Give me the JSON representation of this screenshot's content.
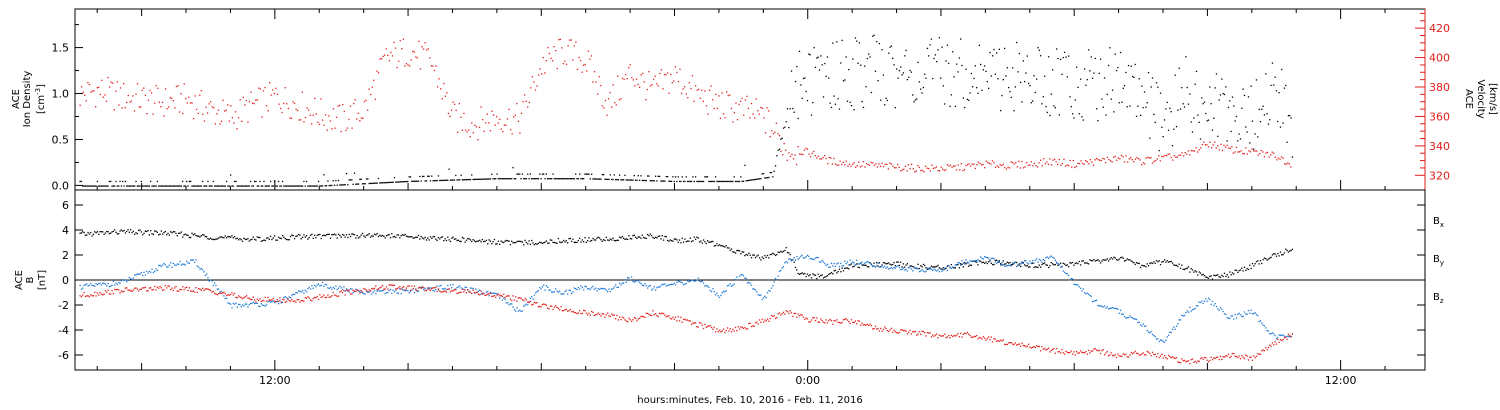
{
  "chart_data": [
    {
      "type": "scatter",
      "title": "",
      "xlabel": "hours:minutes, Feb. 10, 2016 - Feb. 11, 2016",
      "x_range_hours": [
        -16.5,
        13.9
      ],
      "x_tick_labels": [
        "12:00",
        "0:00",
        "12:00"
      ],
      "x_tick_values_hours": [
        -12,
        0,
        12
      ],
      "ylabel_left": [
        "ACE",
        "Ion Density",
        "[cm",
        "-3",
        "]"
      ],
      "ylim_left": [
        -0.05,
        1.92
      ],
      "yticks_left": [
        "0.0",
        "0.5",
        "1.0",
        "1.5"
      ],
      "ylabel_right": [
        "ACE",
        "Velocity",
        "[km/s]"
      ],
      "ylim_right": [
        310,
        433
      ],
      "yticks_right": [
        "320",
        "340",
        "360",
        "380",
        "400",
        "420"
      ],
      "series": [
        {
          "color": "#e0201b",
          "axis": "right",
          "x": [
            -16.4,
            -16.0,
            -15.5,
            -15.0,
            -14.5,
            -14.0,
            -13.5,
            -13.0,
            -12.5,
            -12.0,
            -11.5,
            -11.0,
            -10.5,
            -10.0,
            -9.5,
            -9.0,
            -8.5,
            -8.0,
            -7.5,
            -7.0,
            -6.5,
            -6.0,
            -5.5,
            -5.0,
            -4.5,
            -4.0,
            -3.5,
            -3.0,
            -2.5,
            -2.0,
            -1.5,
            -1.0,
            -0.5,
            0.0,
            0.5,
            1.0,
            1.5,
            2.0,
            2.5,
            3.0,
            3.5,
            4.0,
            4.5,
            5.0,
            5.5,
            6.0,
            6.5,
            7.0,
            7.5,
            8.0,
            8.5,
            9.0,
            9.5,
            10.0,
            10.5,
            10.9
          ],
          "values": [
            375,
            378,
            374,
            372,
            370,
            372,
            365,
            360,
            368,
            374,
            368,
            362,
            358,
            365,
            400,
            405,
            398,
            360,
            355,
            360,
            358,
            395,
            405,
            398,
            368,
            390,
            378,
            388,
            375,
            368,
            365,
            360,
            338,
            336,
            330,
            328,
            327,
            326,
            325,
            325,
            326,
            328,
            327,
            328,
            330,
            328,
            330,
            332,
            330,
            332,
            334,
            342,
            338,
            336,
            334,
            328
          ]
        }
      ],
      "density_series": {
        "color": "#000000",
        "axis": "left",
        "x": [
          -16.4,
          -15.0,
          -13.0,
          -11.0,
          -9.0,
          -7.0,
          -5.0,
          -3.0,
          -1.5,
          -0.8,
          -0.3,
          0.5,
          1.5,
          2.5,
          3.5,
          4.5,
          5.5,
          6.5,
          7.0,
          7.5,
          8.0,
          8.5,
          9.0,
          9.5,
          10.0,
          10.5,
          10.9
        ],
        "values": [
          0.0,
          0.0,
          0.0,
          0.0,
          0.05,
          0.08,
          0.08,
          0.05,
          0.05,
          0.1,
          1.1,
          1.2,
          1.25,
          1.2,
          1.25,
          1.2,
          1.15,
          1.1,
          1.2,
          1.0,
          0.6,
          1.05,
          0.8,
          0.9,
          0.7,
          1.1,
          0.6
        ]
      }
    },
    {
      "type": "scatter",
      "title": "",
      "ylabel_left": [
        "ACE",
        "B",
        "[nT]"
      ],
      "ylim": [
        -7.2,
        7.2
      ],
      "yticks": [
        "6",
        "4",
        "2",
        "0",
        "-2",
        "-4",
        "-6"
      ],
      "zero_line": true,
      "legend": [
        {
          "name": "B",
          "sub": "x",
          "color": "#000000"
        },
        {
          "name": "B",
          "sub": "y",
          "color": "#1e7ad6"
        },
        {
          "name": "B",
          "sub": "z",
          "color": "#e0201b"
        }
      ],
      "series": [
        {
          "name": "Bx",
          "color": "#000000",
          "x": [
            -16.4,
            -15.5,
            -14.5,
            -13.5,
            -12.5,
            -11.5,
            -10.5,
            -9.5,
            -8.5,
            -7.5,
            -6.5,
            -5.5,
            -4.5,
            -3.5,
            -3.0,
            -2.5,
            -2.0,
            -1.5,
            -1.0,
            -0.5,
            -0.2,
            0.3,
            1.0,
            2.0,
            3.0,
            4.0,
            5.0,
            6.0,
            7.0,
            7.5,
            8.0,
            8.5,
            9.0,
            9.5,
            10.0,
            10.5,
            10.9
          ],
          "values": [
            3.7,
            3.9,
            3.8,
            3.5,
            3.3,
            3.5,
            3.6,
            3.6,
            3.4,
            3.2,
            3.0,
            3.2,
            3.3,
            3.6,
            3.2,
            3.3,
            2.8,
            2.2,
            1.8,
            2.5,
            0.5,
            0.3,
            1.2,
            1.3,
            1.0,
            1.5,
            1.2,
            1.3,
            1.8,
            1.2,
            1.5,
            1.0,
            0.2,
            0.5,
            1.2,
            2.0,
            2.5
          ]
        },
        {
          "name": "By",
          "color": "#1e7ad6",
          "x": [
            -16.4,
            -15.5,
            -14.5,
            -13.8,
            -13.0,
            -12.0,
            -11.0,
            -10.0,
            -9.0,
            -8.0,
            -7.0,
            -6.5,
            -6.0,
            -5.5,
            -5.0,
            -4.5,
            -4.0,
            -3.5,
            -3.0,
            -2.5,
            -2.0,
            -1.5,
            -1.0,
            -0.5,
            0.0,
            0.5,
            1.0,
            2.0,
            3.0,
            3.5,
            4.0,
            4.5,
            5.0,
            5.5,
            6.0,
            6.5,
            7.0,
            7.5,
            8.0,
            8.5,
            9.0,
            9.5,
            10.0,
            10.5,
            10.9
          ],
          "values": [
            -0.5,
            -0.2,
            1.2,
            1.5,
            -2.0,
            -1.8,
            -0.3,
            -1.0,
            -0.8,
            -0.5,
            -1.2,
            -2.5,
            -0.5,
            -1.0,
            -0.5,
            -0.8,
            0.2,
            -0.6,
            -0.3,
            0.1,
            -1.2,
            0.5,
            -1.5,
            1.5,
            2.0,
            1.2,
            1.5,
            1.0,
            0.8,
            1.5,
            1.8,
            1.2,
            1.5,
            1.8,
            -0.2,
            -1.8,
            -2.5,
            -3.5,
            -5.0,
            -2.5,
            -1.5,
            -3.0,
            -2.5,
            -4.5,
            -4.4
          ]
        },
        {
          "name": "Bz",
          "color": "#e0201b",
          "x": [
            -16.4,
            -15.5,
            -14.5,
            -13.5,
            -12.5,
            -11.5,
            -10.5,
            -9.5,
            -8.5,
            -7.5,
            -6.5,
            -6.0,
            -5.5,
            -5.0,
            -4.5,
            -4.0,
            -3.5,
            -3.0,
            -2.5,
            -2.0,
            -1.5,
            -1.0,
            -0.5,
            0.0,
            0.5,
            1.0,
            1.5,
            2.0,
            2.5,
            3.0,
            3.5,
            4.0,
            4.5,
            5.0,
            5.5,
            6.0,
            6.5,
            7.0,
            7.5,
            8.0,
            8.5,
            9.0,
            9.5,
            10.0,
            10.5,
            10.9
          ],
          "values": [
            -1.2,
            -0.8,
            -0.6,
            -0.8,
            -1.5,
            -1.6,
            -1.0,
            -0.5,
            -0.7,
            -0.9,
            -1.5,
            -2.0,
            -2.3,
            -2.6,
            -2.8,
            -3.2,
            -2.6,
            -3.0,
            -3.5,
            -4.0,
            -3.8,
            -3.2,
            -2.5,
            -3.1,
            -3.3,
            -3.2,
            -3.8,
            -4.0,
            -4.2,
            -4.5,
            -4.3,
            -4.6,
            -5.0,
            -5.3,
            -5.6,
            -5.8,
            -5.6,
            -6.0,
            -5.8,
            -6.0,
            -6.5,
            -6.3,
            -6.0,
            -6.2,
            -5.0,
            -4.3
          ]
        }
      ]
    }
  ]
}
